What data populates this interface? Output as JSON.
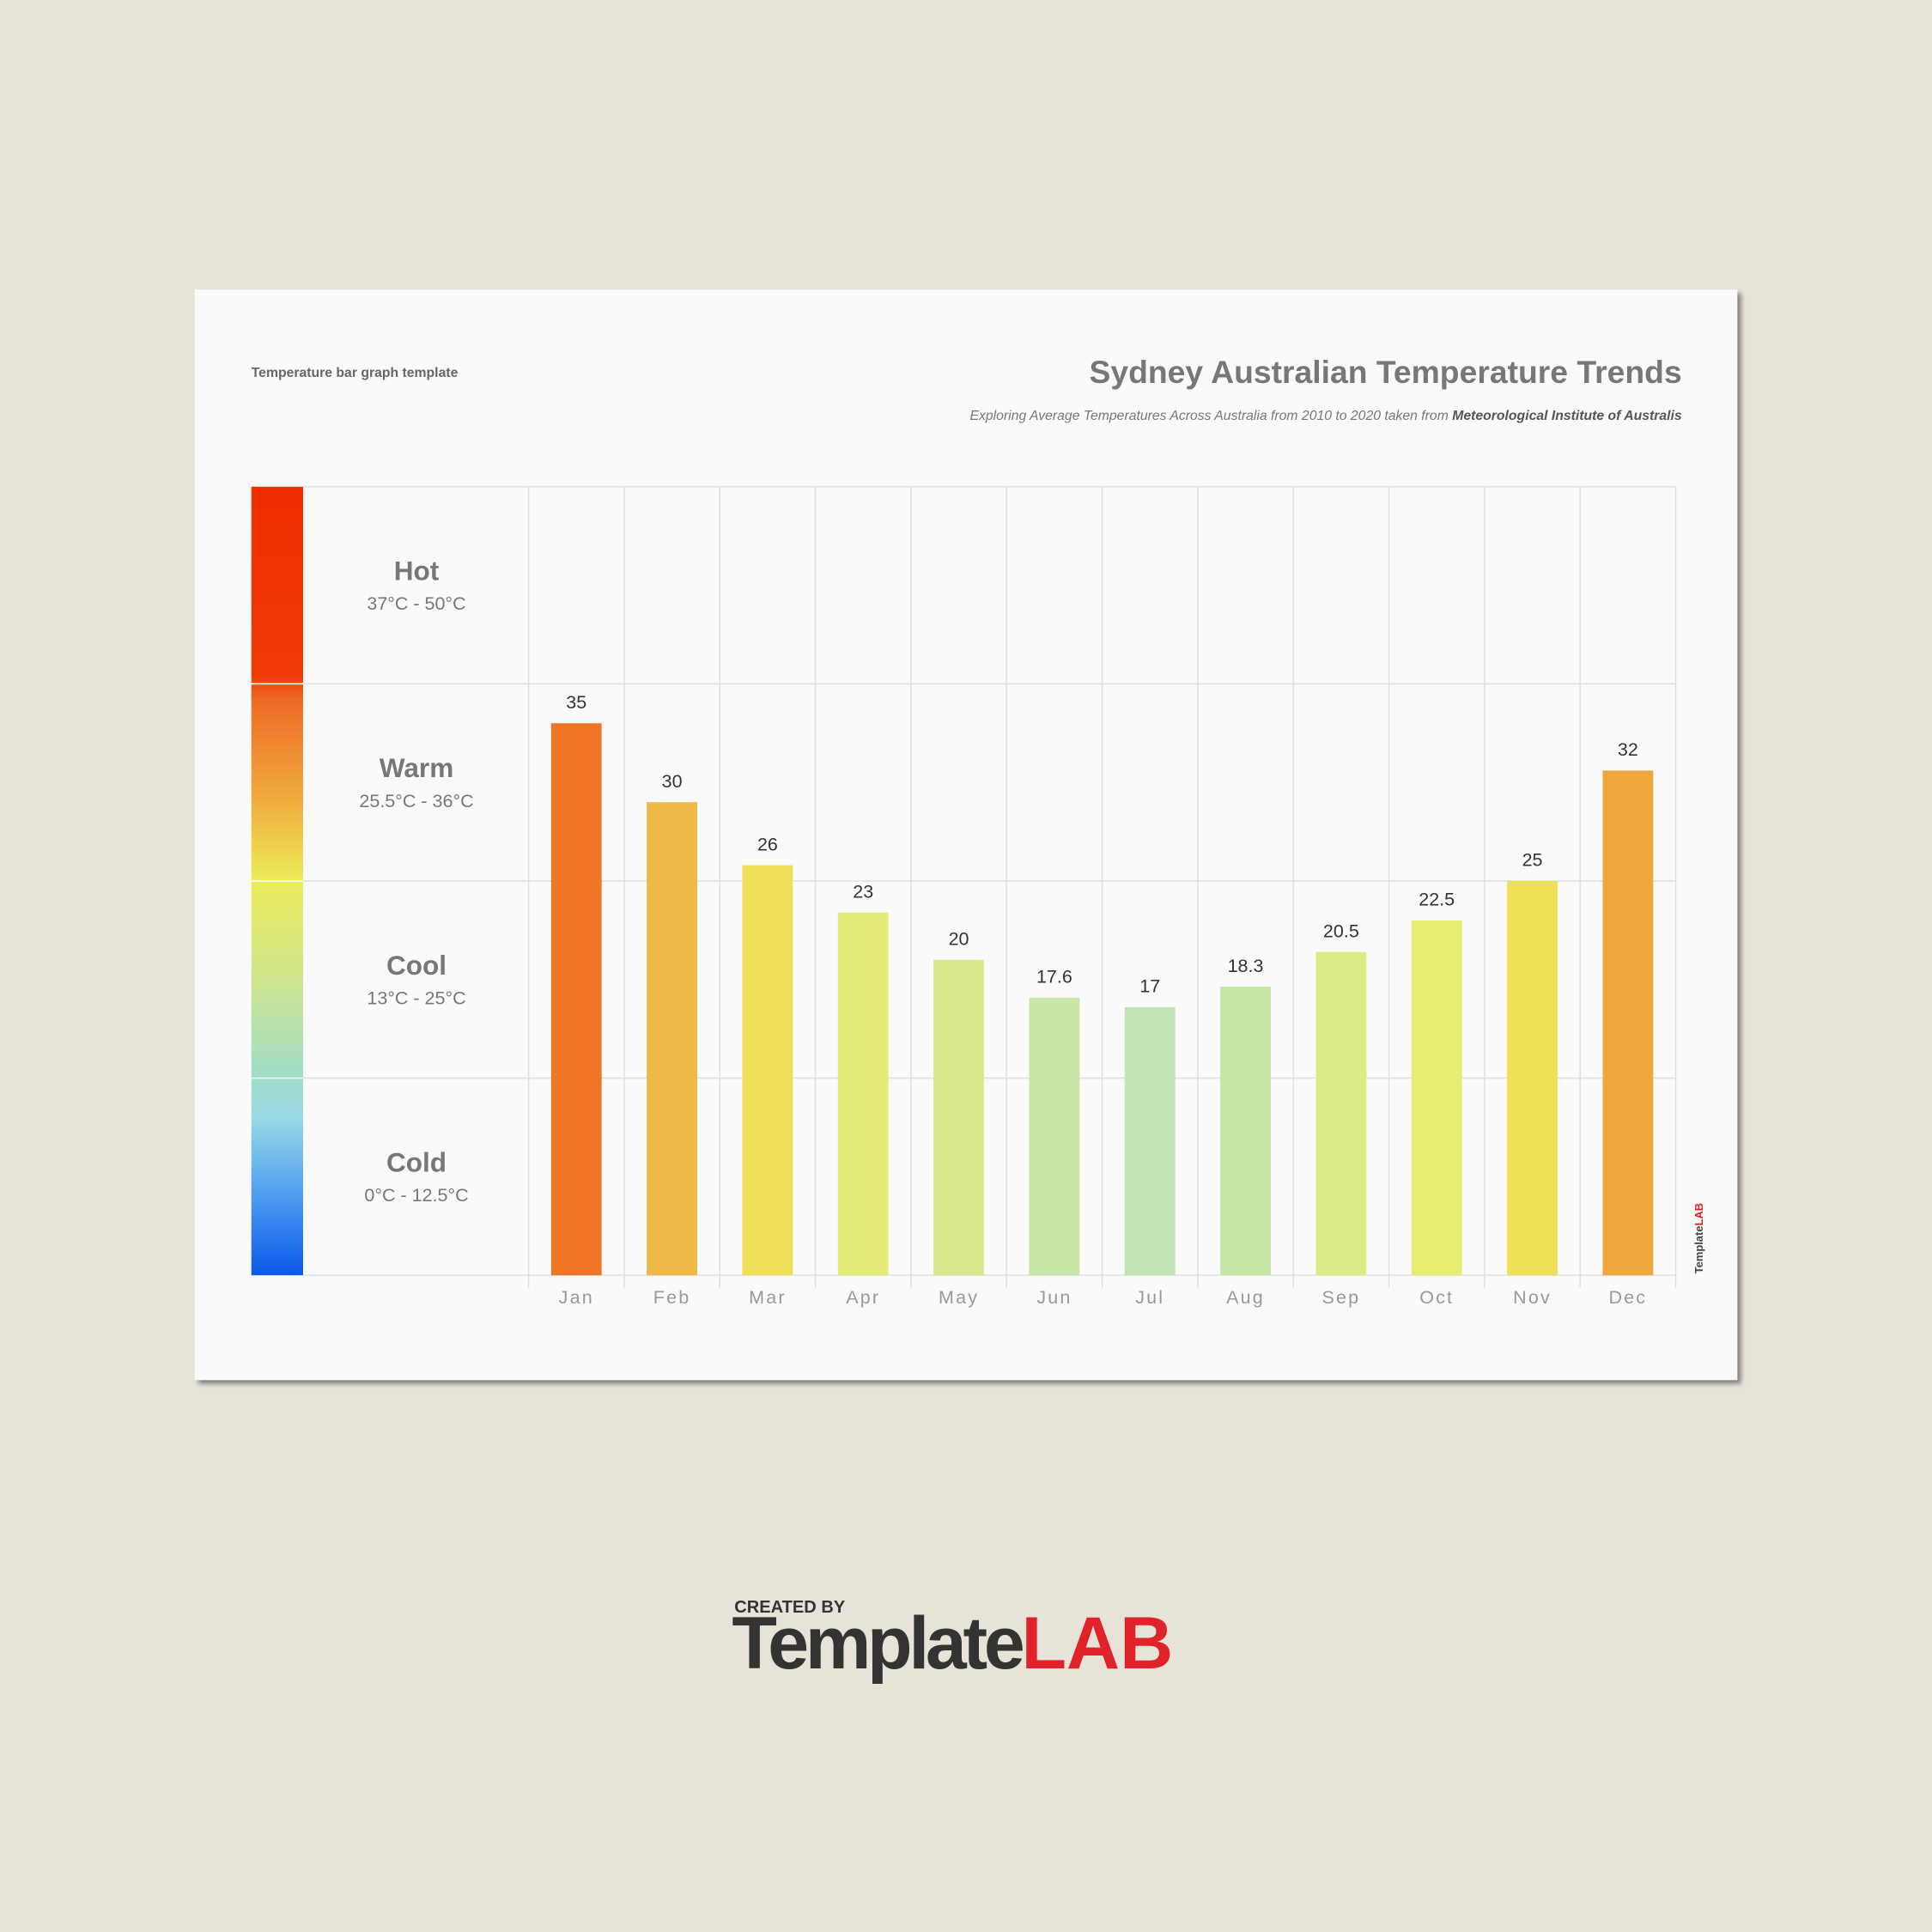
{
  "page": {
    "label": "Temperature bar graph template"
  },
  "branding": {
    "created_by": "CREATED BY",
    "logo_main": "Template",
    "logo_accent": "LAB"
  },
  "chart_data": {
    "type": "bar",
    "title": "Sydney Australian Temperature Trends",
    "subtitle": "Exploring Average Temperatures Across Australia from 2010 to 2020 taken from",
    "source": "Meteorological Institute of Australis",
    "categories": [
      "Jan",
      "Feb",
      "Mar",
      "Apr",
      "May",
      "Jun",
      "Jul",
      "Aug",
      "Sep",
      "Oct",
      "Nov",
      "Dec"
    ],
    "values": [
      35,
      30,
      26,
      23,
      20,
      17.6,
      17,
      18.3,
      20.5,
      22.5,
      25,
      32
    ],
    "colors": [
      "#ee7626",
      "#f0b848",
      "#f0de58",
      "#e4ec78",
      "#d8e88c",
      "#c8e6a8",
      "#c0e4b4",
      "#c6e6a6",
      "#dcea88",
      "#e6ee72",
      "#f0e058",
      "#f0a63a"
    ],
    "ylim": [
      0,
      50
    ],
    "yticks": [
      0,
      12.5,
      25,
      37.5,
      50
    ],
    "grid": true,
    "bands": [
      {
        "name": "Hot",
        "range": "37°C - 50°C"
      },
      {
        "name": "Warm",
        "range": "25.5°C - 36°C"
      },
      {
        "name": "Cool",
        "range": "13°C - 25°C"
      },
      {
        "name": "Cold",
        "range": "0°C - 12.5°C"
      }
    ]
  }
}
